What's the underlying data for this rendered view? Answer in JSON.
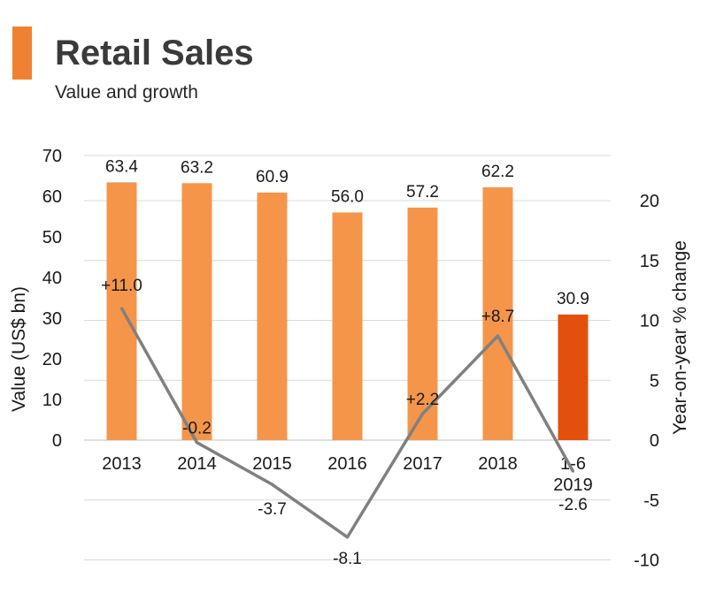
{
  "header": {
    "title": "Retail Sales",
    "subtitle": "Value and growth",
    "accent_color": "#f08133"
  },
  "chart_data": {
    "type": "bar",
    "categories": [
      "2013",
      "2014",
      "2015",
      "2016",
      "2017",
      "2018",
      "1-6\n2019"
    ],
    "series": [
      {
        "type": "bar",
        "axis": "left",
        "values": [
          63.4,
          63.2,
          60.9,
          56.0,
          57.2,
          62.2,
          30.9
        ],
        "labels": [
          "63.4",
          "63.2",
          "60.9",
          "56.0",
          "57.2",
          "62.2",
          "30.9"
        ],
        "colors": [
          "#f5954a",
          "#f5954a",
          "#f5954a",
          "#f5954a",
          "#f5954a",
          "#f5954a",
          "#e2500c"
        ]
      },
      {
        "type": "line",
        "axis": "right",
        "values": [
          11.0,
          -0.2,
          -3.7,
          -8.1,
          2.2,
          8.7,
          -2.6
        ],
        "labels": [
          "+11.0",
          "-0.2",
          "-3.7",
          "-8.1",
          "+2.2",
          "+8.7",
          "-2.6"
        ],
        "color": "#808080"
      }
    ],
    "ylabel": "Value (US$ bn)",
    "y2label": "Year-on-year % change",
    "ylim": [
      0,
      70
    ],
    "yticks": [
      0,
      10,
      20,
      30,
      40,
      50,
      60,
      70
    ],
    "y2lim": [
      -10,
      25
    ],
    "y2ticks": [
      -10,
      -5,
      0,
      5,
      10,
      15,
      20
    ],
    "grid": true,
    "legend": "none"
  }
}
